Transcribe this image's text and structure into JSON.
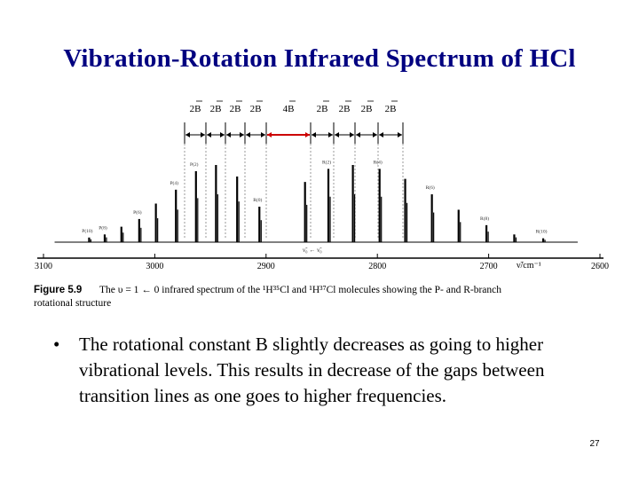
{
  "slide": {
    "title": "Vibration-Rotation Infrared Spectrum of HCl",
    "bullet_symbol": "•",
    "bullet_text": "The rotational constant B slightly decreases as going to higher vibrational levels. This results in decrease of the gaps between transition lines as one goes to higher frequencies.",
    "page_number": "27"
  },
  "figure": {
    "spacing_labels": [
      "2B",
      "2B",
      "2B",
      "2B",
      "4B",
      "2B",
      "2B",
      "2B",
      "2B"
    ],
    "highlight_color": "#cc0000",
    "branch_labels": [
      "P(10)",
      "P(8)",
      "P(6)",
      "P(4)",
      "P(2)",
      "R(0)",
      "R(2)",
      "R(4)",
      "R(6)",
      "R(8)",
      "R(10)"
    ],
    "center_label": "ν̃₀ ← ν̃₀",
    "x_axis_unit": "ν̃/cm⁻¹",
    "caption_number": "Figure 5.9",
    "caption_line1": "The υ = 1 ← 0 infrared spectrum of the ¹H³⁵Cl and ¹H³⁷Cl molecules showing the P- and R-branch",
    "caption_line2": "rotational structure"
  },
  "chart_data": {
    "type": "line",
    "title": "",
    "xlabel": "ν̃/cm⁻¹",
    "ylabel": "",
    "x_ticks": [
      3100,
      3000,
      2900,
      2800,
      2700,
      2600
    ],
    "xlim": [
      3100,
      2600
    ],
    "x_reversed": true,
    "grid": false,
    "series": [
      {
        "peak_positions_cm1": [
          3059,
          3045,
          3030,
          3014,
          2999,
          2981,
          2963,
          2945,
          2926,
          2906,
          2865,
          2844,
          2822,
          2798,
          2775,
          2751,
          2727,
          2702,
          2677,
          2651
        ],
        "relative_intensity": [
          0.06,
          0.1,
          0.2,
          0.3,
          0.5,
          0.68,
          0.92,
          1.0,
          0.85,
          0.46,
          0.78,
          0.95,
          1.0,
          0.95,
          0.82,
          0.62,
          0.42,
          0.22,
          0.1,
          0.05
        ]
      }
    ]
  }
}
